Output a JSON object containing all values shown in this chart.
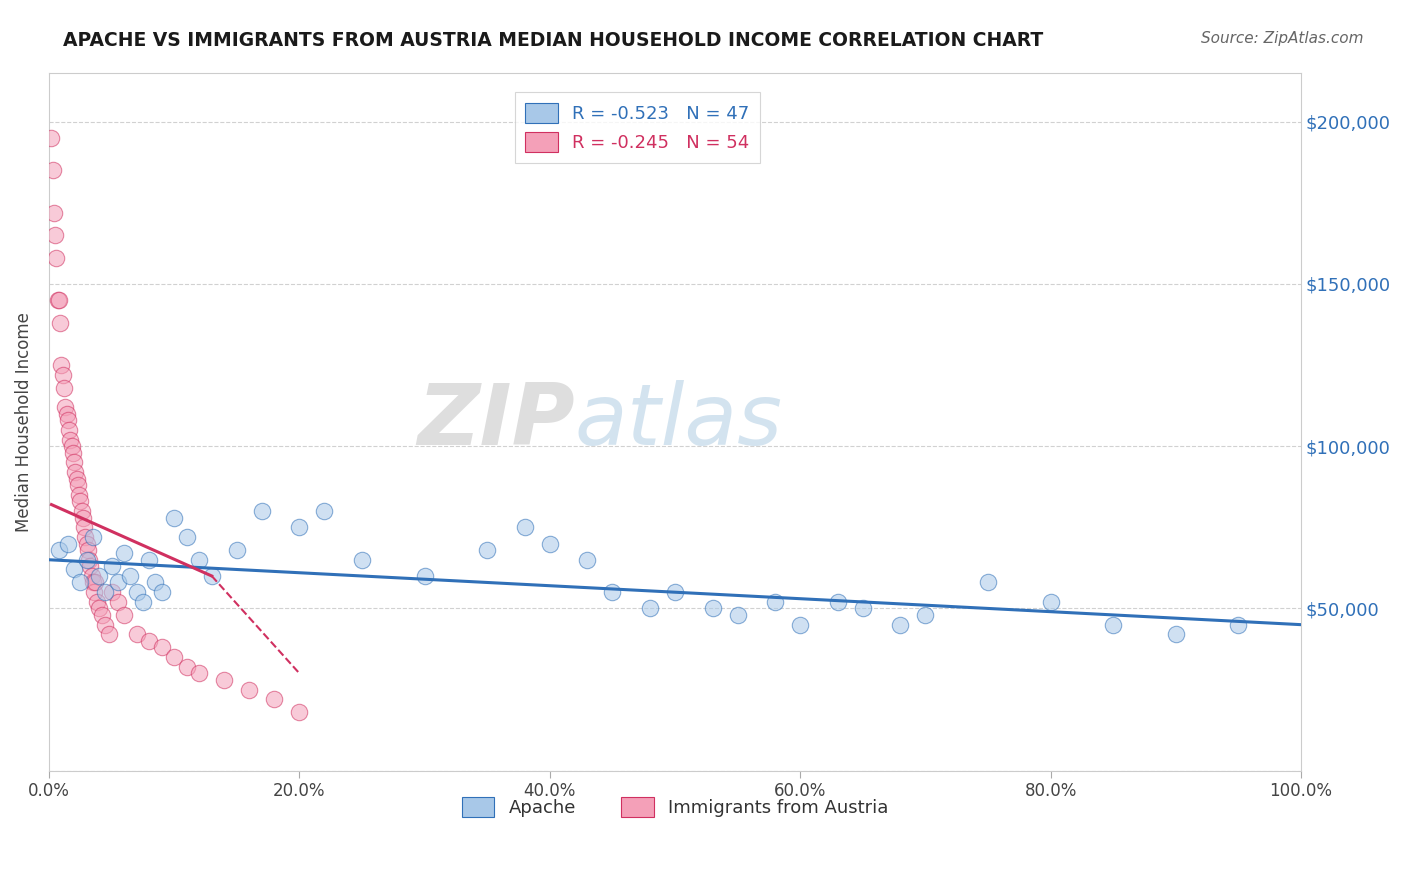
{
  "title": "APACHE VS IMMIGRANTS FROM AUSTRIA MEDIAN HOUSEHOLD INCOME CORRELATION CHART",
  "source": "Source: ZipAtlas.com",
  "ylabel": "Median Household Income",
  "xlabel": "",
  "xlim": [
    0,
    100
  ],
  "ylim": [
    0,
    215000
  ],
  "yticks": [
    0,
    50000,
    100000,
    150000,
    200000
  ],
  "ytick_labels": [
    "",
    "$50,000",
    "$100,000",
    "$150,000",
    "$200,000"
  ],
  "xtick_labels": [
    "0.0%",
    "20.0%",
    "40.0%",
    "60.0%",
    "80.0%",
    "100.0%"
  ],
  "xticks": [
    0,
    20,
    40,
    60,
    80,
    100
  ],
  "legend_R1": "R = -0.523",
  "legend_N1": "N = 47",
  "legend_R2": "R = -0.245",
  "legend_N2": "N = 54",
  "blue_color": "#a8c8e8",
  "pink_color": "#f4a0b8",
  "blue_line_color": "#3070b8",
  "pink_line_color": "#d03060",
  "watermark_zip": "ZIP",
  "watermark_atlas": "atlas",
  "label_apache": "Apache",
  "label_austria": "Immigrants from Austria",
  "apache_x": [
    0.8,
    1.5,
    2.0,
    2.5,
    3.0,
    3.5,
    4.0,
    4.5,
    5.0,
    5.5,
    6.0,
    6.5,
    7.0,
    7.5,
    8.0,
    8.5,
    9.0,
    10.0,
    11.0,
    12.0,
    13.0,
    15.0,
    17.0,
    20.0,
    22.0,
    25.0,
    30.0,
    35.0,
    38.0,
    40.0,
    43.0,
    45.0,
    48.0,
    50.0,
    53.0,
    55.0,
    58.0,
    60.0,
    63.0,
    65.0,
    68.0,
    70.0,
    75.0,
    80.0,
    85.0,
    90.0,
    95.0
  ],
  "apache_y": [
    68000,
    70000,
    62000,
    58000,
    65000,
    72000,
    60000,
    55000,
    63000,
    58000,
    67000,
    60000,
    55000,
    52000,
    65000,
    58000,
    55000,
    78000,
    72000,
    65000,
    60000,
    68000,
    80000,
    75000,
    80000,
    65000,
    60000,
    68000,
    75000,
    70000,
    65000,
    55000,
    50000,
    55000,
    50000,
    48000,
    52000,
    45000,
    52000,
    50000,
    45000,
    48000,
    58000,
    52000,
    45000,
    42000,
    45000
  ],
  "austria_x": [
    0.2,
    0.3,
    0.4,
    0.5,
    0.6,
    0.7,
    0.8,
    0.9,
    1.0,
    1.1,
    1.2,
    1.3,
    1.4,
    1.5,
    1.6,
    1.7,
    1.8,
    1.9,
    2.0,
    2.1,
    2.2,
    2.3,
    2.4,
    2.5,
    2.6,
    2.7,
    2.8,
    2.9,
    3.0,
    3.1,
    3.2,
    3.3,
    3.4,
    3.5,
    3.6,
    3.7,
    3.8,
    4.0,
    4.2,
    4.5,
    4.8,
    5.0,
    5.5,
    6.0,
    7.0,
    8.0,
    9.0,
    10.0,
    11.0,
    12.0,
    14.0,
    16.0,
    18.0,
    20.0
  ],
  "austria_y": [
    195000,
    185000,
    172000,
    165000,
    158000,
    145000,
    145000,
    138000,
    125000,
    122000,
    118000,
    112000,
    110000,
    108000,
    105000,
    102000,
    100000,
    98000,
    95000,
    92000,
    90000,
    88000,
    85000,
    83000,
    80000,
    78000,
    75000,
    72000,
    70000,
    68000,
    65000,
    63000,
    60000,
    58000,
    55000,
    58000,
    52000,
    50000,
    48000,
    45000,
    42000,
    55000,
    52000,
    48000,
    42000,
    40000,
    38000,
    35000,
    32000,
    30000,
    28000,
    25000,
    22000,
    18000
  ],
  "blue_line_x0": 0,
  "blue_line_y0": 65000,
  "blue_line_x1": 100,
  "blue_line_y1": 45000,
  "pink_solid_x0": 0.2,
  "pink_solid_y0": 82000,
  "pink_solid_x1": 13.0,
  "pink_solid_y1": 60000,
  "pink_dash_x0": 13.0,
  "pink_dash_y0": 60000,
  "pink_dash_x1": 20.0,
  "pink_dash_y1": 30000
}
